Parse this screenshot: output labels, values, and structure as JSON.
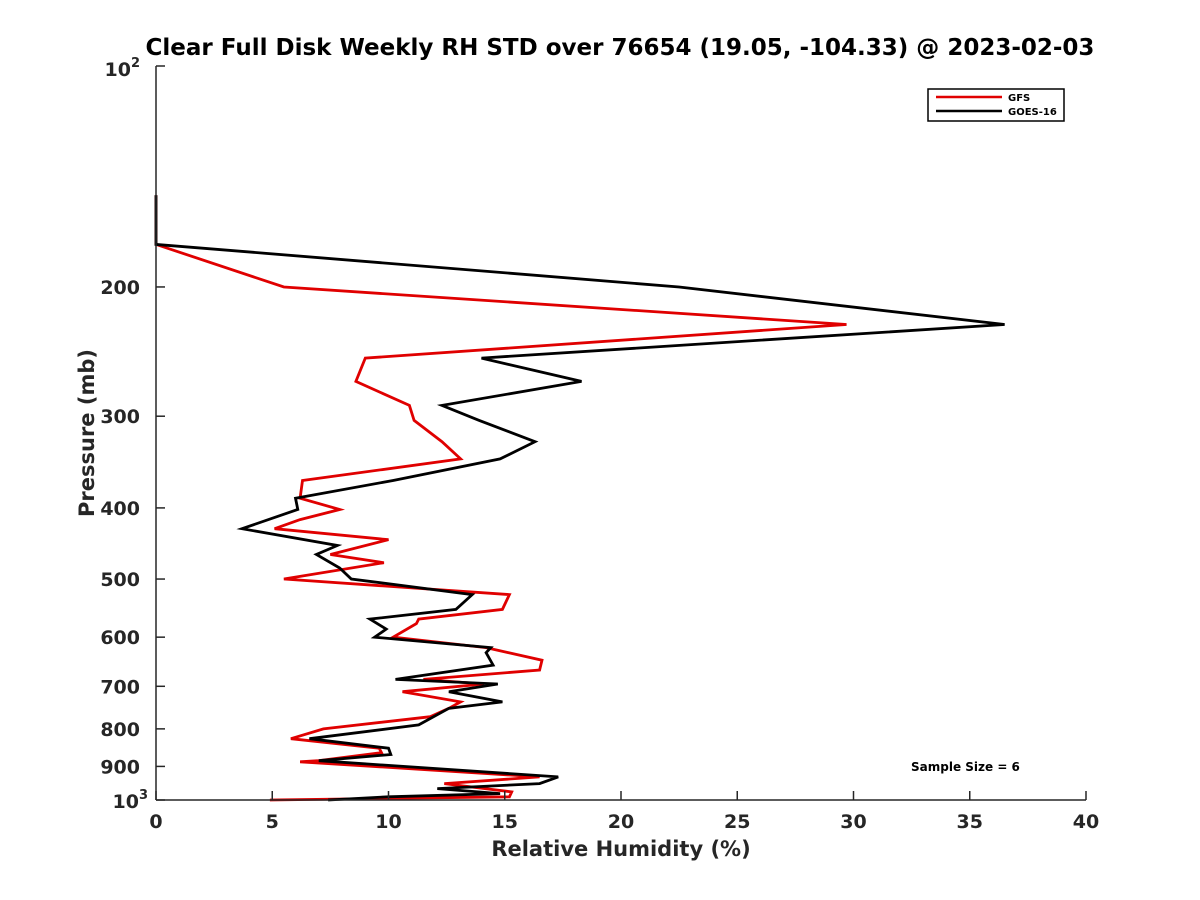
{
  "chart_data": {
    "type": "line",
    "title": "Clear Full Disk Weekly RH STD over 76654 (19.05, -104.33) @ 2023-02-03",
    "xlabel": "Relative Humidity (%)",
    "ylabel": "Pressure (mb)",
    "xlim": [
      0,
      40
    ],
    "ylim": [
      100,
      1000
    ],
    "yscale": "log",
    "y_reversed": true,
    "x_ticks": [
      0,
      5,
      10,
      15,
      20,
      25,
      30,
      35,
      40
    ],
    "x_tick_labels": [
      "0",
      "5",
      "10",
      "15",
      "20",
      "25",
      "30",
      "35",
      "40"
    ],
    "y_ticks": [
      200,
      300,
      400,
      500,
      600,
      700,
      800,
      900
    ],
    "y_tick_labels": [
      "200",
      "300",
      "400",
      "500",
      "600",
      "700",
      "800",
      "900"
    ],
    "y_pow_labels": {
      "top": {
        "base": "10",
        "exp": "2"
      },
      "bottom": {
        "base": "10",
        "exp": "3"
      }
    },
    "legend_location": "top-right",
    "annotation": "Sample Size = 6",
    "series": [
      {
        "name": "GFS",
        "color": "#e00000",
        "points": [
          [
            0,
            150
          ],
          [
            0,
            175
          ],
          [
            5.5,
            200
          ],
          [
            29.7,
            225
          ],
          [
            9,
            250
          ],
          [
            8.6,
            269
          ],
          [
            10.9,
            290
          ],
          [
            11.1,
            304
          ],
          [
            12.3,
            325
          ],
          [
            13.1,
            343
          ],
          [
            6.3,
            367
          ],
          [
            6.2,
            388
          ],
          [
            7.9,
            402
          ],
          [
            6.2,
            415
          ],
          [
            5.1,
            427
          ],
          [
            10,
            442
          ],
          [
            7.5,
            463
          ],
          [
            9.8,
            475
          ],
          [
            5.5,
            500
          ],
          [
            15.2,
            525
          ],
          [
            14.9,
            550
          ],
          [
            11.3,
            567
          ],
          [
            11.2,
            575
          ],
          [
            10.2,
            600
          ],
          [
            14.2,
            620
          ],
          [
            16.6,
            645
          ],
          [
            16.5,
            665
          ],
          [
            11.5,
            685
          ],
          [
            14.1,
            695
          ],
          [
            10.6,
            712
          ],
          [
            13.1,
            735
          ],
          [
            12.6,
            750
          ],
          [
            11.8,
            770
          ],
          [
            7.2,
            800
          ],
          [
            5.8,
            825
          ],
          [
            9.6,
            850
          ],
          [
            9.7,
            862
          ],
          [
            7,
            884
          ],
          [
            6.2,
            887
          ],
          [
            16.5,
            930
          ],
          [
            12.4,
            950
          ],
          [
            15.3,
            975
          ],
          [
            15.2,
            990
          ],
          [
            4.9,
            1000
          ]
        ]
      },
      {
        "name": "GOES-16",
        "color": "#000000",
        "points": [
          [
            0,
            150
          ],
          [
            0,
            175
          ],
          [
            22.5,
            200
          ],
          [
            36.5,
            225
          ],
          [
            14,
            250
          ],
          [
            18.3,
            269
          ],
          [
            12.3,
            290
          ],
          [
            13.9,
            304
          ],
          [
            16.3,
            325
          ],
          [
            14.8,
            343
          ],
          [
            10.2,
            367
          ],
          [
            6,
            388
          ],
          [
            6.1,
            402
          ],
          [
            3.7,
            427
          ],
          [
            7.8,
            450
          ],
          [
            6.9,
            463
          ],
          [
            7.9,
            483
          ],
          [
            8.4,
            500
          ],
          [
            13.6,
            525
          ],
          [
            12.9,
            550
          ],
          [
            9.2,
            567
          ],
          [
            9.9,
            585
          ],
          [
            9.4,
            600
          ],
          [
            14.4,
            620
          ],
          [
            14.2,
            630
          ],
          [
            14.5,
            655
          ],
          [
            10.3,
            685
          ],
          [
            14.7,
            695
          ],
          [
            12.6,
            712
          ],
          [
            14.9,
            735
          ],
          [
            12.6,
            750
          ],
          [
            11.3,
            790
          ],
          [
            6.6,
            825
          ],
          [
            10,
            850
          ],
          [
            10.1,
            867
          ],
          [
            7,
            884
          ],
          [
            17.3,
            930
          ],
          [
            16.5,
            950
          ],
          [
            12.1,
            965
          ],
          [
            14.8,
            980
          ],
          [
            10,
            990
          ],
          [
            7.4,
            1000
          ]
        ]
      }
    ]
  }
}
